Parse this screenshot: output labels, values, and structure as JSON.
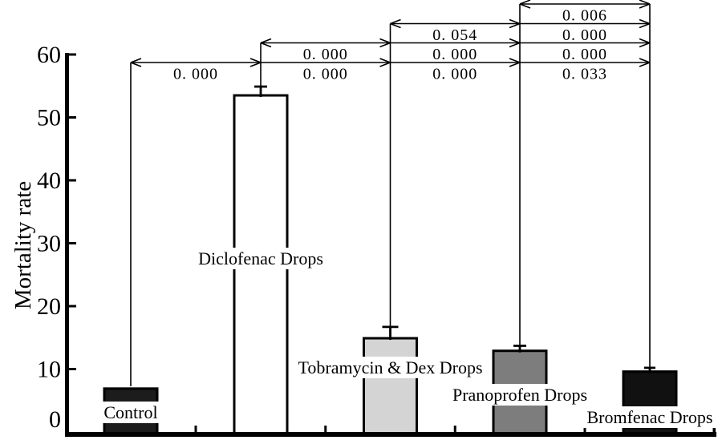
{
  "chart_data": {
    "type": "bar",
    "title": "",
    "xlabel": "",
    "ylabel": "Mortality rate",
    "ylim": [
      0,
      60
    ],
    "yticks": [
      0,
      10,
      20,
      30,
      40,
      50,
      60
    ],
    "grid": false,
    "legend": false,
    "categories": [
      "Control",
      "Diclofenac Drops",
      "Tobramycin & Dex Drops",
      "Pranoprofen Drops",
      "Bromfenac Drops"
    ],
    "values": [
      6.9,
      53.5,
      14.9,
      12.9,
      9.6
    ],
    "errors": [
      0,
      1.4,
      1.8,
      0.8,
      0.6
    ],
    "bar_fills": [
      "#1c1c1c",
      "#ffffff",
      "#d4d4d4",
      "#7d7d7d",
      "#111111"
    ],
    "bar_border_color": "#000000",
    "pairwise_p_values": [
      {
        "pair": [
          "Control",
          "Diclofenac Drops"
        ],
        "p": "0.000"
      },
      {
        "pair": [
          "Control",
          "Tobramycin & Dex Drops"
        ],
        "p": "0.000"
      },
      {
        "pair": [
          "Control",
          "Pranoprofen Drops"
        ],
        "p": "0.000"
      },
      {
        "pair": [
          "Control",
          "Bromfenac Drops"
        ],
        "p": "0.033"
      },
      {
        "pair": [
          "Diclofenac Drops",
          "Tobramycin & Dex Drops"
        ],
        "p": "0.000"
      },
      {
        "pair": [
          "Diclofenac Drops",
          "Pranoprofen Drops"
        ],
        "p": "0.000"
      },
      {
        "pair": [
          "Diclofenac Drops",
          "Bromfenac Drops"
        ],
        "p": "0.000"
      },
      {
        "pair": [
          "Tobramycin & Dex Drops",
          "Pranoprofen Drops"
        ],
        "p": "0.054"
      },
      {
        "pair": [
          "Tobramycin & Dex Drops",
          "Bromfenac Drops"
        ],
        "p": "0.000"
      },
      {
        "pair": [
          "Pranoprofen Drops",
          "Bromfenac Drops"
        ],
        "p": "0.006"
      }
    ]
  },
  "figure": {
    "comparisons": [
      {
        "source_index": 0,
        "labels": [
          "0. 000",
          "0. 000",
          "0. 000",
          "0. 033"
        ]
      },
      {
        "source_index": 1,
        "labels": [
          "0. 000",
          "0. 000",
          "0. 000"
        ]
      },
      {
        "source_index": 2,
        "labels": [
          "0. 054",
          "0. 000"
        ]
      },
      {
        "source_index": 3,
        "labels": [
          "0. 006"
        ]
      }
    ]
  }
}
